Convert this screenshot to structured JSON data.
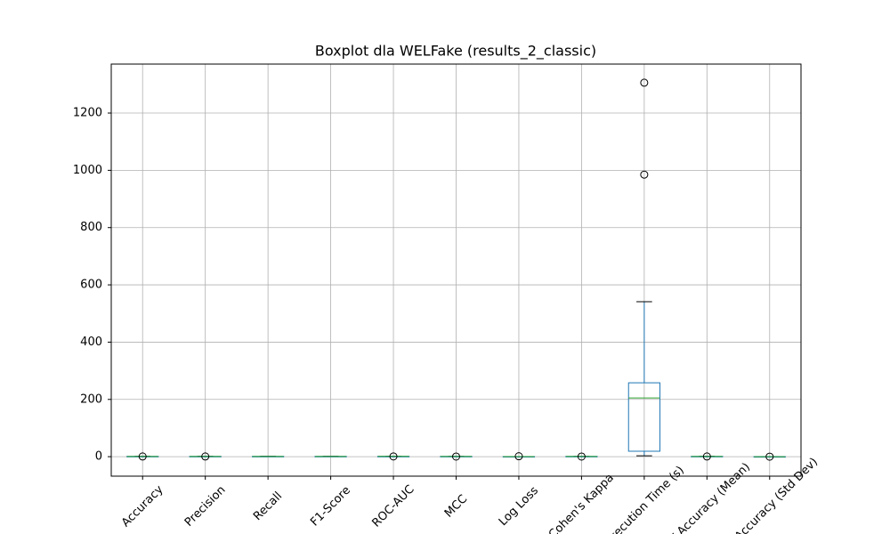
{
  "chart_data": {
    "type": "boxplot",
    "title": "Boxplot dla WELFake (results_2_classic)",
    "categories": [
      "Accuracy",
      "Precision",
      "Recall",
      "F1-Score",
      "ROC-AUC",
      "MCC",
      "Log Loss",
      "Cohen's Kappa",
      "Execution Time (s)",
      "CV Accuracy (Mean)",
      "CV Accuracy (Std Dev)"
    ],
    "boxes": [
      {
        "min": 0.85,
        "q1": 0.9,
        "median": 0.93,
        "q3": 0.95,
        "max": 0.97,
        "outliers": [
          0.7
        ]
      },
      {
        "min": 0.85,
        "q1": 0.9,
        "median": 0.93,
        "q3": 0.95,
        "max": 0.97,
        "outliers": [
          0.72
        ]
      },
      {
        "min": 0.86,
        "q1": 0.9,
        "median": 0.93,
        "q3": 0.95,
        "max": 0.98,
        "outliers": []
      },
      {
        "min": 0.86,
        "q1": 0.9,
        "median": 0.93,
        "q3": 0.95,
        "max": 0.97,
        "outliers": []
      },
      {
        "min": 0.9,
        "q1": 0.95,
        "median": 0.97,
        "q3": 0.98,
        "max": 0.99,
        "outliers": [
          0.8
        ]
      },
      {
        "min": 0.72,
        "q1": 0.8,
        "median": 0.86,
        "q3": 0.9,
        "max": 0.94,
        "outliers": [
          0.45
        ]
      },
      {
        "min": 0.1,
        "q1": 0.2,
        "median": 0.25,
        "q3": 0.35,
        "max": 0.5,
        "outliers": [
          1.5
        ]
      },
      {
        "min": 0.72,
        "q1": 0.8,
        "median": 0.86,
        "q3": 0.9,
        "max": 0.94,
        "outliers": [
          0.45
        ]
      },
      {
        "min": 3,
        "q1": 19,
        "median": 205,
        "q3": 258,
        "max": 541,
        "outliers": [
          985,
          1306
        ]
      },
      {
        "min": 0.85,
        "q1": 0.9,
        "median": 0.93,
        "q3": 0.95,
        "max": 0.97,
        "outliers": [
          0.7
        ]
      },
      {
        "min": 0.002,
        "q1": 0.004,
        "median": 0.006,
        "q3": 0.008,
        "max": 0.012,
        "outliers": [
          0.03
        ]
      }
    ],
    "box_color": "#1f77b4",
    "median_color": "#2ca02c",
    "ylim": [
      -68,
      1371
    ],
    "yticks": [
      0,
      200,
      400,
      600,
      800,
      1000,
      1200
    ],
    "grid": true
  }
}
